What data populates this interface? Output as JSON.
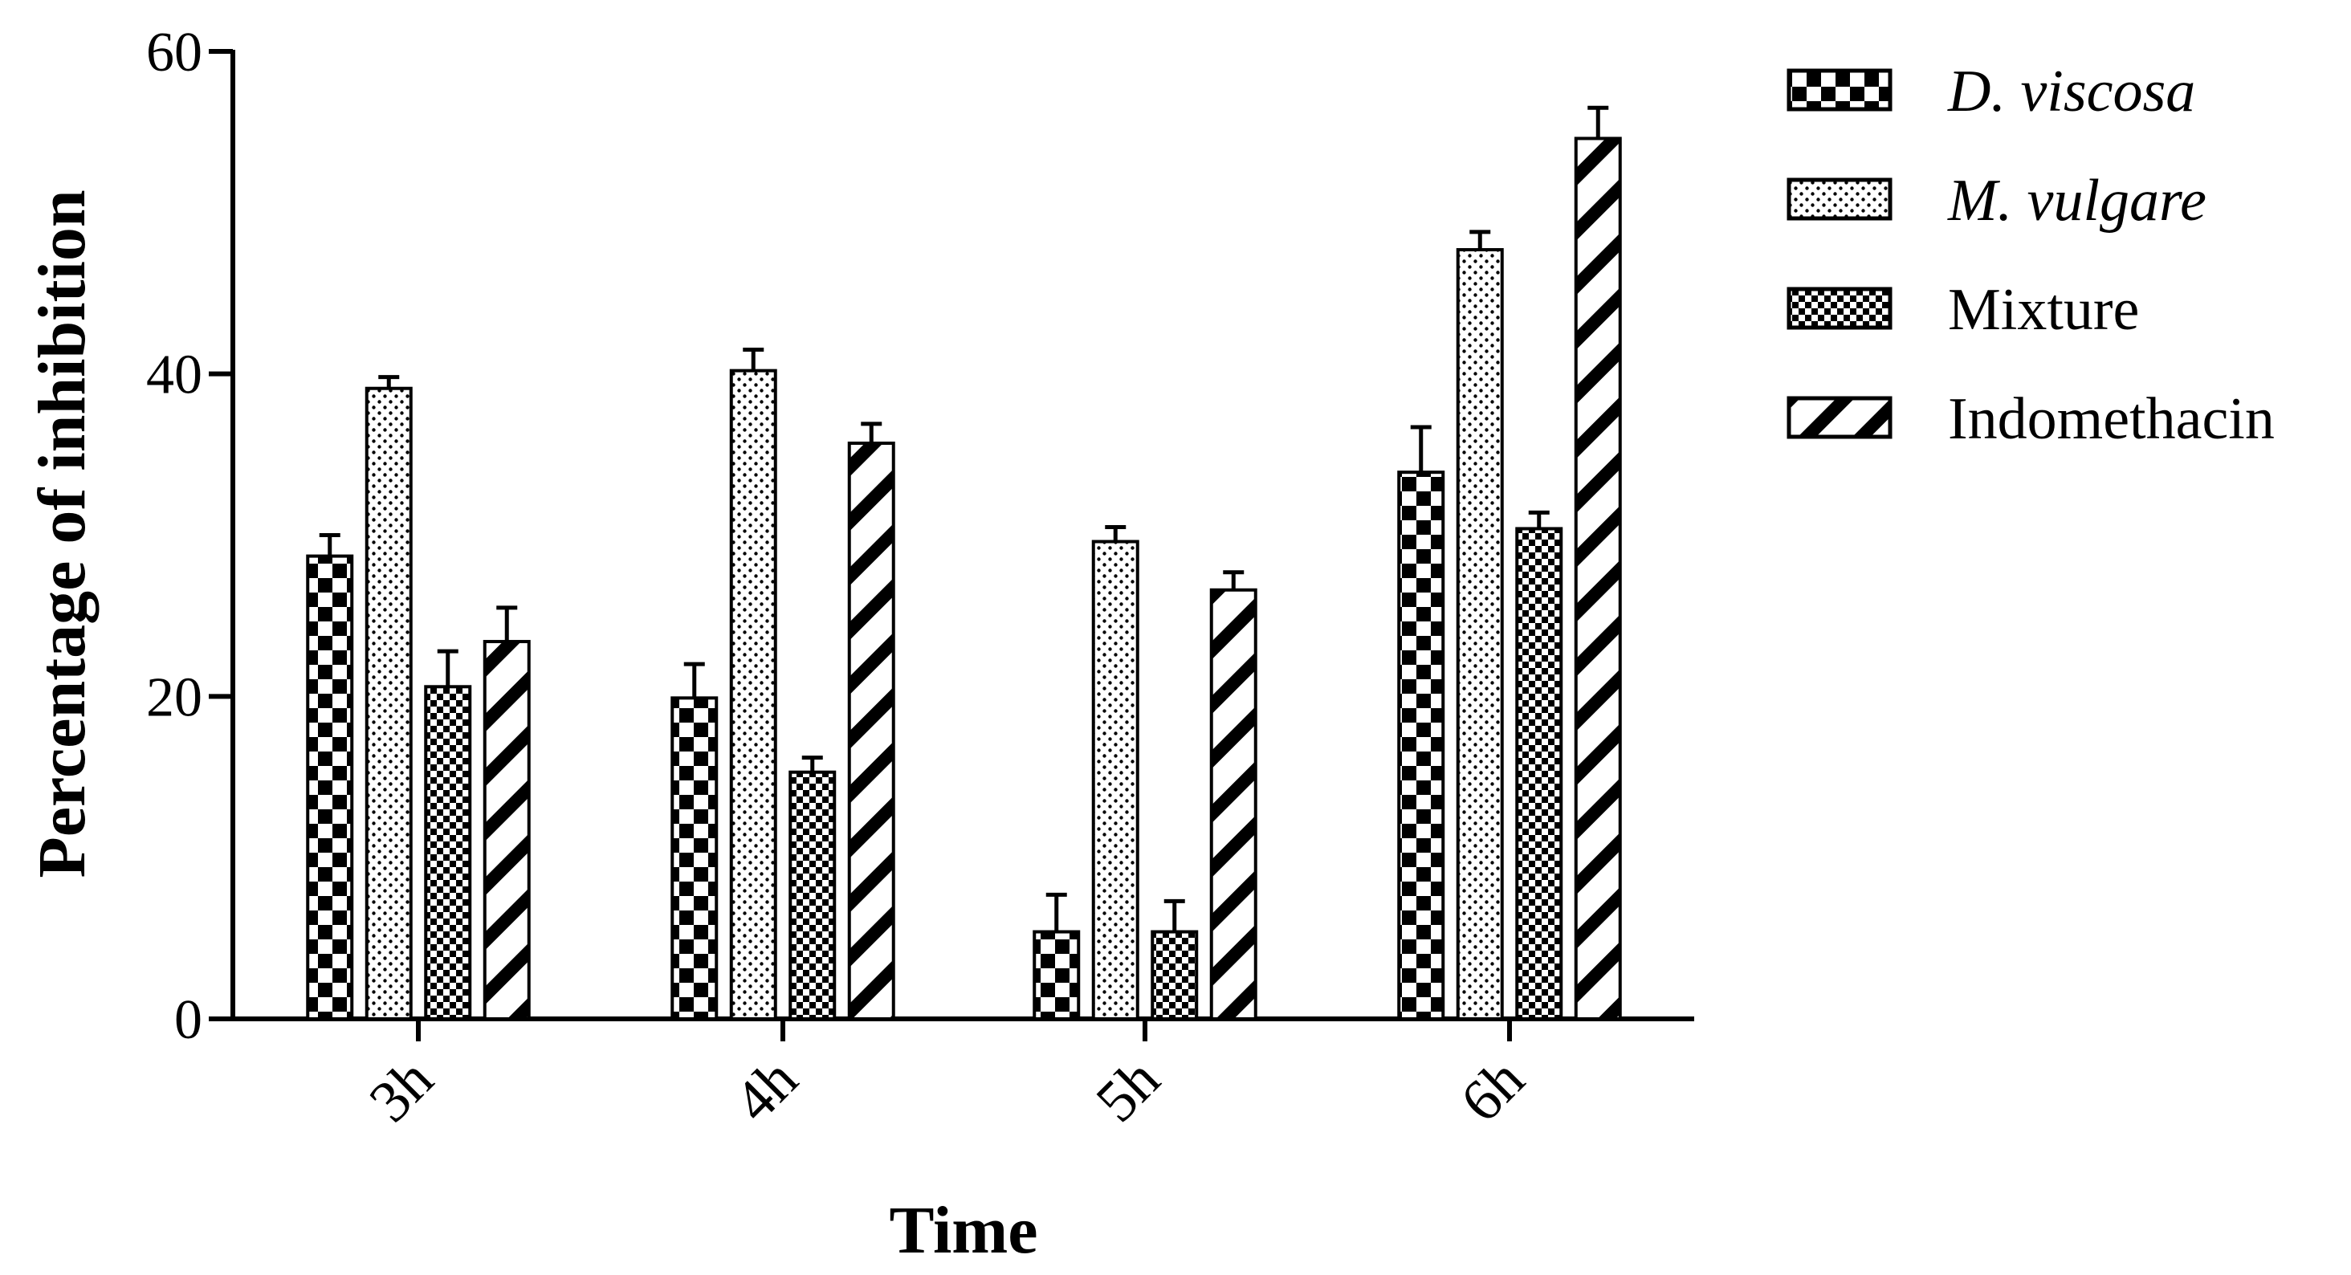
{
  "chart_data": {
    "type": "bar",
    "title": "",
    "xlabel": "Time",
    "ylabel": "Percentage of inhibition",
    "categories": [
      "3h",
      "4h",
      "5h",
      "6h"
    ],
    "ylim": [
      0,
      60
    ],
    "yticks": [
      "0",
      "20",
      "40",
      "60"
    ],
    "legend_position": "right",
    "grid": false,
    "series": [
      {
        "name": "D. viscosa",
        "italic": true,
        "pattern": "checker",
        "values": [
          28.7,
          19.9,
          5.4,
          33.9
        ],
        "errors": [
          1.3,
          2.1,
          2.3,
          2.8
        ]
      },
      {
        "name": "M. vulgare",
        "italic": true,
        "pattern": "dots",
        "values": [
          39.1,
          40.2,
          29.6,
          47.7
        ],
        "errors": [
          0.7,
          1.3,
          0.9,
          1.1
        ]
      },
      {
        "name": "Mixture",
        "italic": false,
        "pattern": "dense-check",
        "values": [
          20.6,
          15.3,
          5.4,
          30.4
        ],
        "errors": [
          2.2,
          0.9,
          1.9,
          1.0
        ]
      },
      {
        "name": "Indomethacin",
        "italic": false,
        "pattern": "hatch",
        "values": [
          23.4,
          35.7,
          26.6,
          54.6
        ],
        "errors": [
          2.1,
          1.2,
          1.1,
          1.9
        ]
      }
    ]
  }
}
